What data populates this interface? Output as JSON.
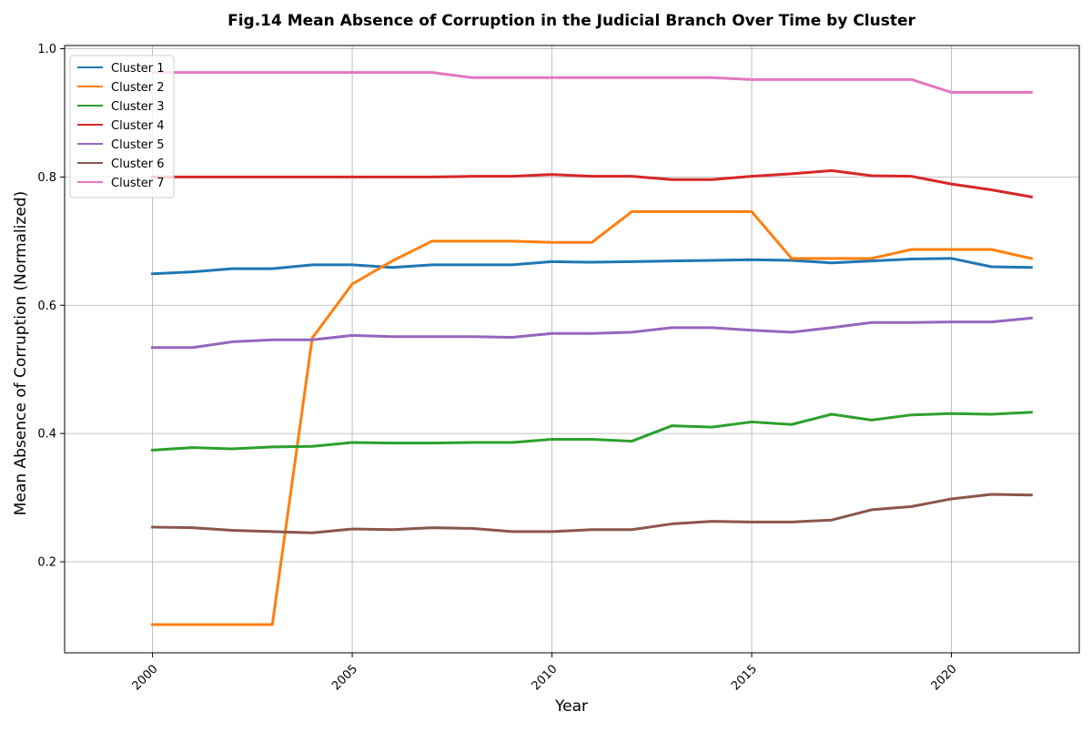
{
  "chart_data": {
    "type": "line",
    "title": "Fig.14 Mean Absence of Corruption in the Judicial Branch Over Time by Cluster",
    "xlabel": "Year",
    "ylabel": "Mean Absence of Corruption (Normalized)",
    "xlim": [
      1997.8,
      2023.2
    ],
    "ylim": [
      0.058,
      1.005
    ],
    "xticks": [
      2000,
      2005,
      2010,
      2015,
      2020
    ],
    "yticks": [
      0.2,
      0.4,
      0.6,
      0.8,
      1.0
    ],
    "ytick_labels": [
      "0.2",
      "0.4",
      "0.6",
      "0.8",
      "1.0"
    ],
    "grid": true,
    "legend_position": "upper left",
    "x": [
      2000,
      2001,
      2002,
      2003,
      2004,
      2005,
      2006,
      2007,
      2008,
      2009,
      2010,
      2011,
      2012,
      2013,
      2014,
      2015,
      2016,
      2017,
      2018,
      2019,
      2020,
      2021,
      2022
    ],
    "series": [
      {
        "name": "Cluster 1",
        "color": "#1f77b4",
        "values": [
          0.649,
          0.652,
          0.657,
          0.657,
          0.663,
          0.663,
          0.659,
          0.663,
          0.663,
          0.663,
          0.668,
          0.667,
          0.668,
          0.669,
          0.67,
          0.671,
          0.67,
          0.666,
          0.669,
          0.672,
          0.673,
          0.66,
          0.659
        ]
      },
      {
        "name": "Cluster 2",
        "color": "#ff7f0e",
        "values": [
          0.102,
          0.102,
          0.102,
          0.102,
          0.549,
          0.633,
          0.669,
          0.7,
          0.7,
          0.7,
          0.698,
          0.698,
          0.746,
          0.746,
          0.746,
          0.746,
          0.673,
          0.673,
          0.673,
          0.687,
          0.687,
          0.687,
          0.673
        ]
      },
      {
        "name": "Cluster 3",
        "color": "#2ca02c",
        "values": [
          0.374,
          0.378,
          0.376,
          0.379,
          0.38,
          0.386,
          0.385,
          0.385,
          0.386,
          0.386,
          0.391,
          0.391,
          0.388,
          0.412,
          0.41,
          0.418,
          0.414,
          0.43,
          0.421,
          0.429,
          0.431,
          0.43,
          0.433
        ]
      },
      {
        "name": "Cluster 4",
        "color": "#d62728",
        "values": [
          0.8,
          0.8,
          0.8,
          0.8,
          0.8,
          0.8,
          0.8,
          0.8,
          0.801,
          0.801,
          0.804,
          0.801,
          0.801,
          0.796,
          0.796,
          0.801,
          0.805,
          0.81,
          0.802,
          0.801,
          0.789,
          0.78,
          0.769
        ]
      },
      {
        "name": "Cluster 5",
        "color": "#9467bd",
        "values": [
          0.534,
          0.534,
          0.543,
          0.546,
          0.546,
          0.553,
          0.551,
          0.551,
          0.551,
          0.55,
          0.556,
          0.556,
          0.558,
          0.565,
          0.565,
          0.561,
          0.558,
          0.565,
          0.573,
          0.573,
          0.574,
          0.574,
          0.58
        ]
      },
      {
        "name": "Cluster 6",
        "color": "#8c564b",
        "values": [
          0.254,
          0.253,
          0.249,
          0.247,
          0.245,
          0.251,
          0.25,
          0.253,
          0.252,
          0.247,
          0.247,
          0.25,
          0.25,
          0.259,
          0.263,
          0.262,
          0.262,
          0.265,
          0.281,
          0.286,
          0.298,
          0.305,
          0.304
        ]
      },
      {
        "name": "Cluster 7",
        "color": "#e377c2",
        "values": [
          0.963,
          0.963,
          0.963,
          0.963,
          0.963,
          0.963,
          0.963,
          0.963,
          0.955,
          0.955,
          0.955,
          0.955,
          0.955,
          0.955,
          0.955,
          0.952,
          0.952,
          0.952,
          0.952,
          0.952,
          0.932,
          0.932,
          0.932
        ]
      }
    ]
  }
}
